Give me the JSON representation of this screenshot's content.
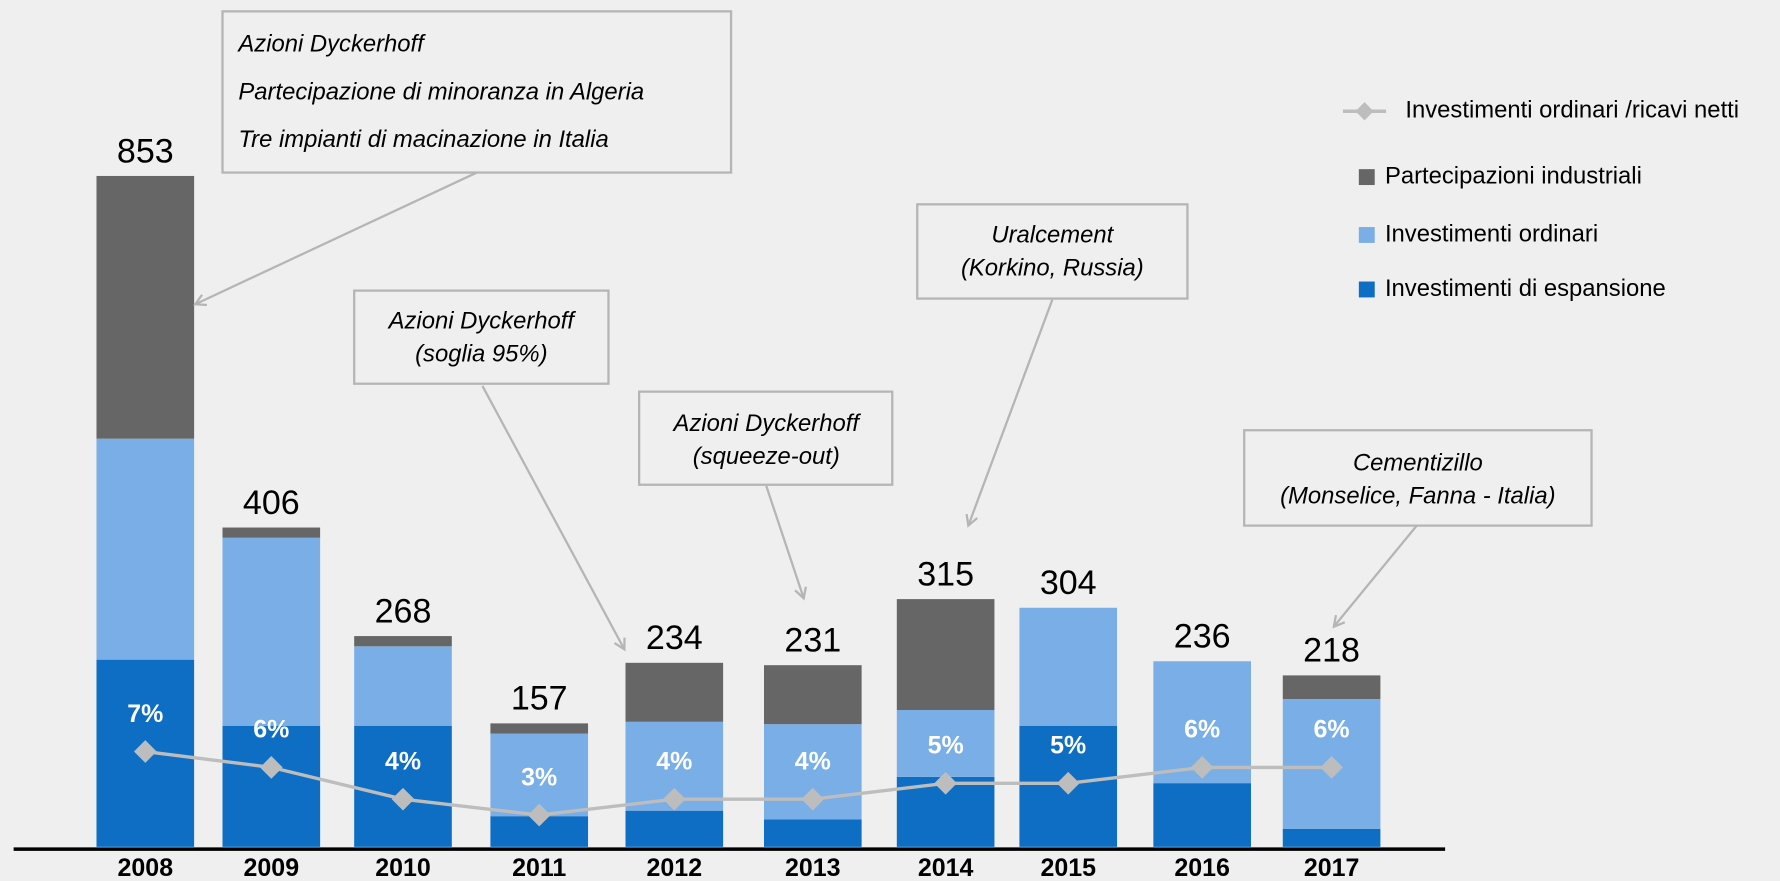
{
  "chart_data": {
    "type": "bar",
    "stacked": true,
    "categories": [
      "2008",
      "2009",
      "2010",
      "2011",
      "2012",
      "2013",
      "2014",
      "2015",
      "2016",
      "2017"
    ],
    "series": [
      {
        "name": "Investimenti di espansione",
        "color": "#0d6ec4",
        "values": [
          238,
          154,
          154,
          39,
          46,
          35,
          89,
          154,
          81,
          23
        ]
      },
      {
        "name": "Investimenti ordinari",
        "color": "#7aaee6",
        "values": [
          281,
          239,
          101,
          105,
          113,
          121,
          85,
          150,
          155,
          165
        ]
      },
      {
        "name": "Partecipazioni industriali",
        "color": "#666666",
        "values": [
          334,
          13,
          13,
          13,
          75,
          75,
          141,
          0,
          0,
          30
        ]
      },
      {
        "name": "Investimenti ordinari /ricavi netti",
        "type": "line",
        "color": "#bdbdbd",
        "values": [
          7,
          6,
          4,
          3,
          4,
          4,
          5,
          5,
          6,
          6
        ],
        "value_labels": [
          "7%",
          "6%",
          "4%",
          "3%",
          "4%",
          "4%",
          "5%",
          "5%",
          "6%",
          "6%"
        ]
      }
    ],
    "totals": [
      853,
      406,
      268,
      157,
      234,
      231,
      315,
      304,
      236,
      218
    ],
    "annotations": [
      {
        "lines": [
          "Azioni Dyckerhoff",
          "Partecipazione di minoranza in Algeria",
          "Tre impianti di macinazione in Italia"
        ]
      },
      {
        "lines": [
          "Azioni Dyckerhoff",
          "(soglia 95%)"
        ]
      },
      {
        "lines": [
          "Azioni Dyckerhoff",
          "(squeeze-out)"
        ]
      },
      {
        "lines": [
          "Uralcement",
          "(Korkino, Russia)"
        ]
      },
      {
        "lines": [
          "Cementizillo",
          "(Monselice, Fanna - Italia)"
        ]
      }
    ]
  }
}
